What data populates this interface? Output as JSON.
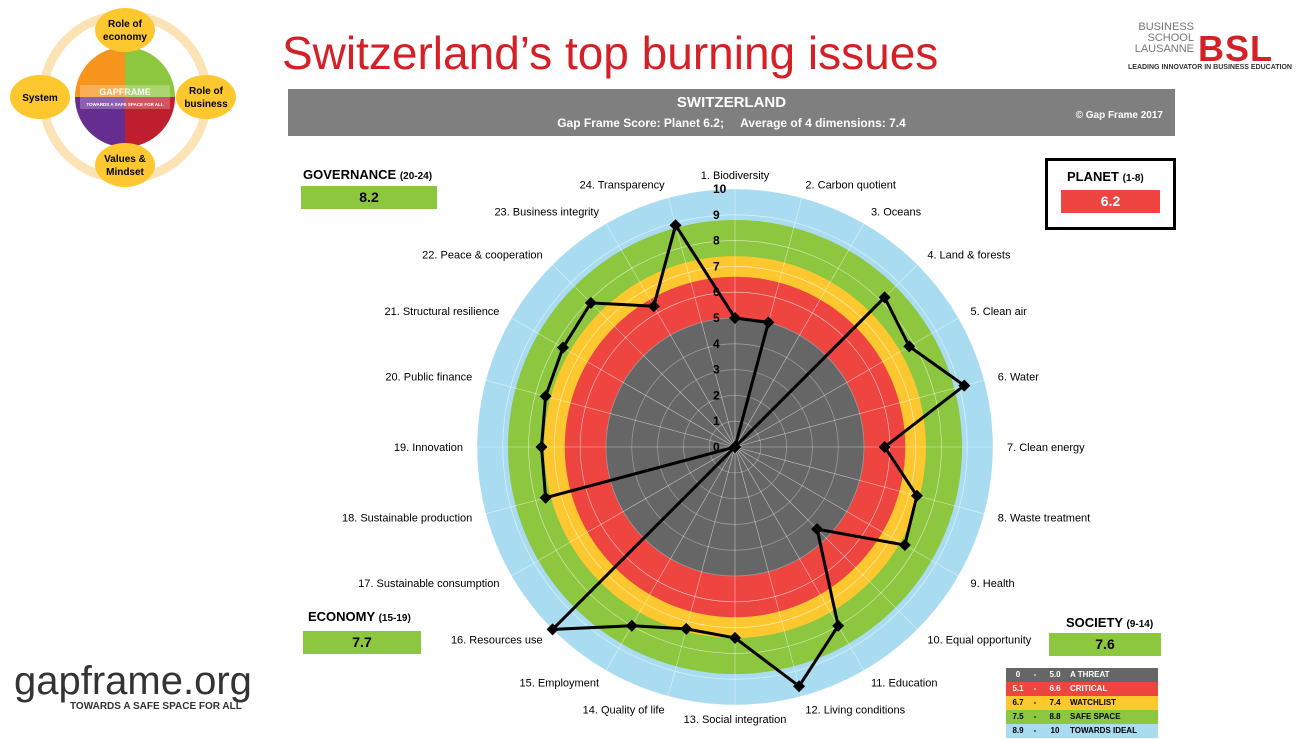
{
  "title": "Switzerland’s top burning issues",
  "brand": {
    "school_text": "BUSINESS SCHOOL LAUSANNE",
    "mark": "BSL",
    "tagline": "LEADING INNOVATOR IN BUSINESS EDUCATION"
  },
  "header": {
    "country": "SWITZERLAND",
    "score_line": "Gap Frame Score: Planet 6.2;     Average of 4 dimensions: 7.4",
    "copyright": "© Gap Frame 2017"
  },
  "framework": {
    "nodes": [
      "Role of economy",
      "Role of business",
      "Values & Mindset",
      "System"
    ],
    "center_title": "GAPFRAME",
    "center_tagline": "TOWARDS A SAFE SPACE FOR ALL",
    "sectors": [
      {
        "name": "GOVERNANCE",
        "color": "#f7941d"
      },
      {
        "name": "PLANET",
        "color": "#8dc63f"
      },
      {
        "name": "SOCIETY",
        "color": "#be1e2d"
      },
      {
        "name": "ECONOMY",
        "color": "#662d91"
      }
    ]
  },
  "dimensions": {
    "governance": {
      "name": "GOVERNANCE",
      "range": "(20-24)",
      "score": "8.2"
    },
    "planet": {
      "name": "PLANET",
      "range": "(1-8)",
      "score": "6.2"
    },
    "economy": {
      "name": "ECONOMY",
      "range": "(15-19)",
      "score": "7.7"
    },
    "society": {
      "name": "SOCIETY",
      "range": "(9-14)",
      "score": "7.6"
    }
  },
  "legend": [
    {
      "from": "0",
      "to": "5.0",
      "label": "A THREAT",
      "color": "#666666",
      "text_color": "#ffffff"
    },
    {
      "from": "5.1",
      "to": "6.6",
      "label": "CRITICAL",
      "color": "#ee4540",
      "text_color": "#ffffff"
    },
    {
      "from": "6.7",
      "to": "7.4",
      "label": "WATCHLIST",
      "color": "#fdc82f",
      "text_color": "#000000"
    },
    {
      "from": "7.5",
      "to": "8.8",
      "label": "SAFE  SPACE",
      "color": "#8dc63f",
      "text_color": "#000000"
    },
    {
      "from": "8.9",
      "to": "10",
      "label": "TOWARDS IDEAL",
      "color": "#a9dcf1",
      "text_color": "#000000"
    }
  ],
  "footer_logo": {
    "text": "gapframe.org",
    "tagline": "TOWARDS A SAFE SPACE FOR ALL"
  },
  "chart_data": {
    "type": "radar",
    "title": "SWITZERLAND",
    "categories": [
      "1. Biodiversity",
      "2. Carbon quotient",
      "3. Oceans",
      "4. Land & forests",
      "5. Clean air",
      "6. Water",
      "7. Clean energy",
      "8. Waste treatment",
      "9. Health",
      "10. Equal opportunity",
      "11. Education",
      "12. Living conditions",
      "13. Social integration",
      "14. Quality of life",
      "15. Employment",
      "16. Resources use",
      "17. Sustainable consumption",
      "18. Sustainable production",
      "19. Innovation",
      "20. Public finance",
      "21. Structural resilience",
      "22. Peace & cooperation",
      "23. Business integrity",
      "24. Transparency"
    ],
    "values": [
      5.0,
      5.0,
      0,
      8.2,
      7.8,
      9.2,
      5.8,
      7.3,
      7.6,
      4.5,
      8.0,
      9.6,
      7.4,
      7.3,
      8.0,
      10.0,
      0,
      7.6,
      7.5,
      7.6,
      7.7,
      7.9,
      6.3,
      8.9
    ],
    "rlim": [
      0,
      10
    ],
    "ticks": [
      "0",
      "1",
      "2",
      "3",
      "4",
      "5",
      "6",
      "7",
      "8",
      "9",
      "10"
    ],
    "bands": [
      {
        "from": 0,
        "to": 5.0,
        "color": "#666666"
      },
      {
        "from": 5.0,
        "to": 6.6,
        "color": "#ee4540"
      },
      {
        "from": 6.6,
        "to": 7.4,
        "color": "#fdc82f"
      },
      {
        "from": 7.4,
        "to": 8.8,
        "color": "#8dc63f"
      },
      {
        "from": 8.8,
        "to": 10,
        "color": "#a9dcf1"
      }
    ]
  }
}
